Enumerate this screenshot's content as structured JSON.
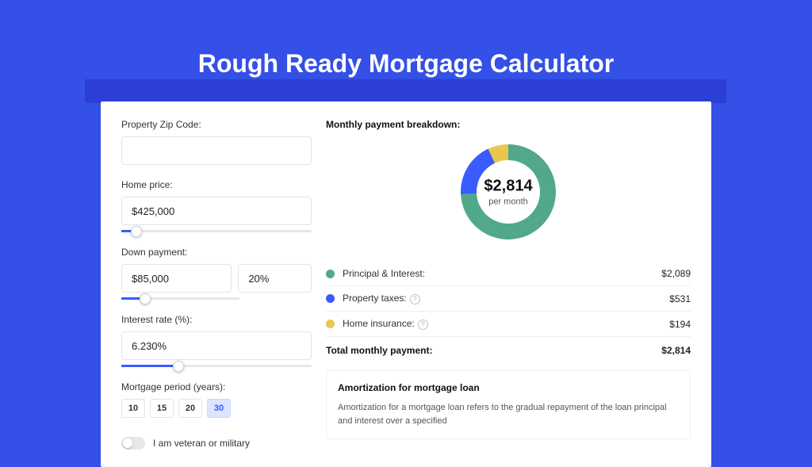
{
  "title": "Rough Ready Mortgage Calculator",
  "form": {
    "zip": {
      "label": "Property Zip Code:",
      "value": ""
    },
    "home_price": {
      "label": "Home price:",
      "value": "$425,000",
      "slider_pct": 8
    },
    "down_payment": {
      "label": "Down payment:",
      "amount": "$85,000",
      "pct": "20%",
      "slider_pct": 20
    },
    "interest": {
      "label": "Interest rate (%):",
      "value": "6.230%",
      "slider_pct": 30
    },
    "period": {
      "label": "Mortgage period (years):",
      "options": [
        "10",
        "15",
        "20",
        "30"
      ],
      "selected": "30"
    },
    "veteran": {
      "label": "I am veteran or military",
      "checked": false
    }
  },
  "breakdown": {
    "title": "Monthly payment breakdown:",
    "center_amount": "$2,814",
    "center_sub": "per month",
    "donut": {
      "type": "donut",
      "outer_radius": 60,
      "thickness": 20,
      "bg_color": "#ffffff",
      "slices": [
        {
          "label": "Principal & Interest:",
          "value": "$2,089",
          "num": 2089,
          "start_deg": 0,
          "sweep_deg": 267,
          "color": "#52a98a"
        },
        {
          "label": "Property taxes:",
          "value": "$531",
          "num": 531,
          "start_deg": 267,
          "sweep_deg": 68,
          "color": "#3a5cff"
        },
        {
          "label": "Home insurance:",
          "value": "$194",
          "num": 194,
          "start_deg": 335,
          "sweep_deg": 25,
          "color": "#e9c74e"
        }
      ]
    },
    "legend": [
      {
        "label": "Principal & Interest:",
        "value": "$2,089",
        "color": "#52a98a",
        "info": false
      },
      {
        "label": "Property taxes:",
        "value": "$531",
        "color": "#3a5cff",
        "info": true
      },
      {
        "label": "Home insurance:",
        "value": "$194",
        "color": "#e9c74e",
        "info": true
      }
    ],
    "total_label": "Total monthly payment:",
    "total_value": "$2,814"
  },
  "amortization": {
    "title": "Amortization for mortgage loan",
    "text": "Amortization for a mortgage loan refers to the gradual repayment of the loan principal and interest over a specified"
  },
  "colors": {
    "page_bg": "#3450e6",
    "header_strip": "#2b3fd4",
    "accent": "#3a5cff",
    "divider": "#eceef2"
  }
}
